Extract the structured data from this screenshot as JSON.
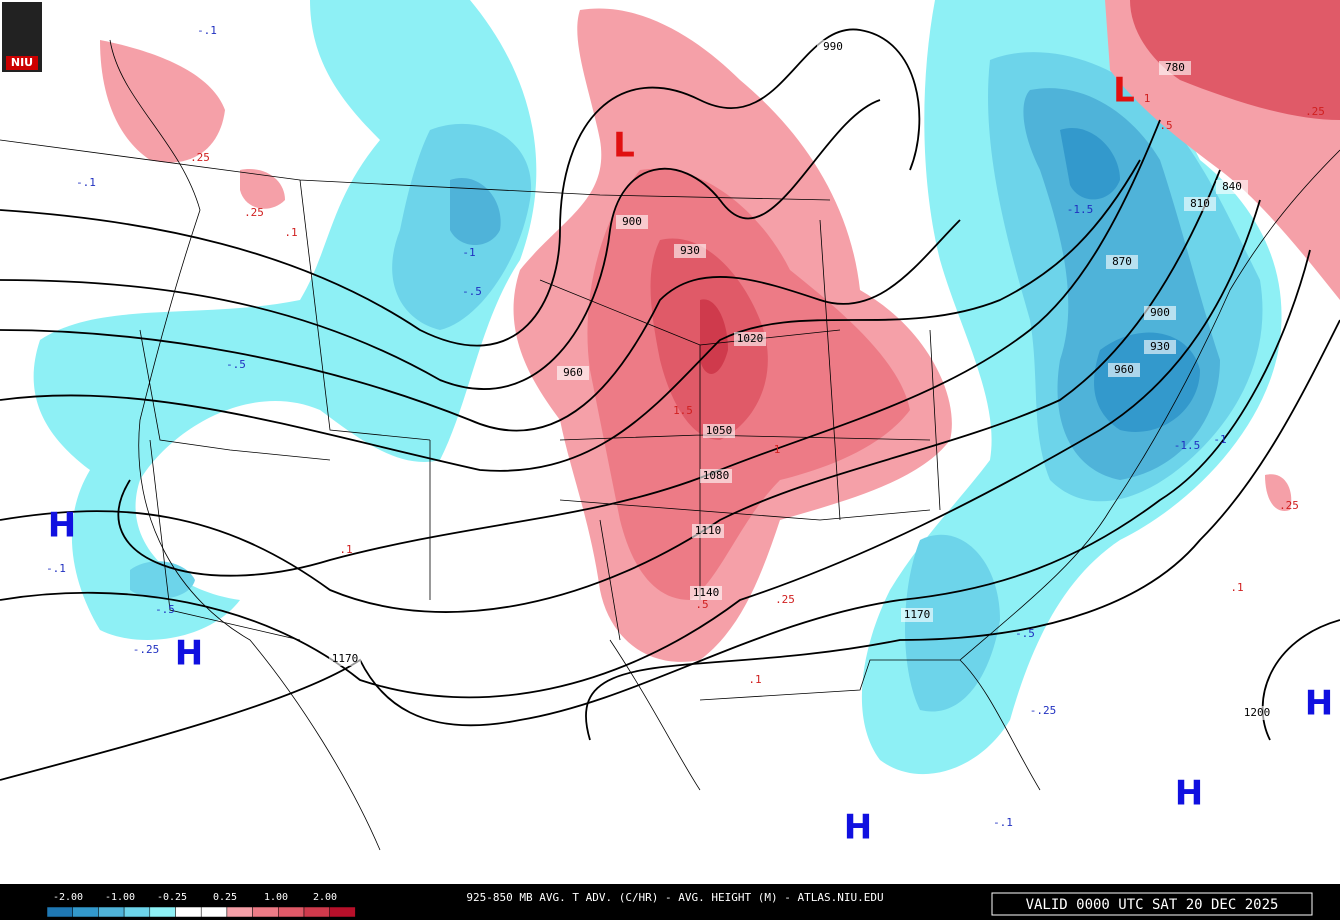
{
  "logo": "NIU",
  "pressure_centers": [
    {
      "label": "H"
    },
    {
      "label": "H"
    },
    {
      "label": "H"
    },
    {
      "label": "H"
    },
    {
      "label": "H"
    },
    {
      "label": "L"
    },
    {
      "label": "L"
    }
  ],
  "height_labels": [
    "990",
    "900",
    "930",
    "960",
    "1020",
    "1050",
    "1080",
    "1110",
    "1140",
    "1170",
    "1170",
    "1200",
    "780",
    "840",
    "810",
    "870",
    "900",
    "930",
    "960"
  ],
  "advection_labels": [
    "-.1",
    "-.1",
    "-1",
    "-.5",
    "-.5",
    "-.1",
    "-.5",
    "-.25",
    "-1.5",
    "-1.5",
    "-1",
    "-.5",
    "-.25",
    "-.1",
    ".25",
    ".25",
    ".1",
    ".1",
    "1",
    ".5",
    "1.5",
    "1",
    ".5",
    ".25",
    ".1",
    ".25",
    ".1",
    ".25"
  ],
  "legend": {
    "labels": [
      "-2.00",
      "-1.00",
      "-0.25",
      "0.25",
      "1.00",
      "2.00"
    ]
  },
  "footer": {
    "title": "925-850 MB AVG. T ADV. (C/HR) - AVG. HEIGHT (M) - ATLAS.NIU.EDU",
    "valid": "VALID 0000 UTC SAT 20 DEC 2025"
  }
}
